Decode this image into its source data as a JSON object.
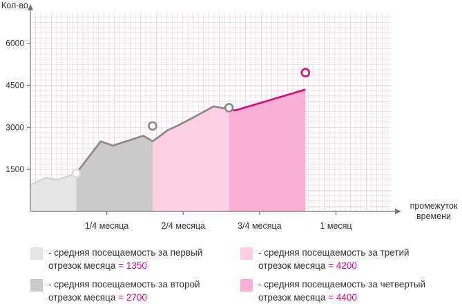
{
  "chart_data": {
    "type": "area",
    "ylabel": "Кол-во",
    "xlabel": "промежуток\nвремени",
    "yticks": [
      1500,
      3000,
      4500,
      6000
    ],
    "ylim": [
      0,
      7000
    ],
    "xlim": [
      0,
      1.2
    ],
    "categories": [
      "1/4 месяца",
      "2/4 месяца",
      "3/4 месяца",
      "1 месяц"
    ],
    "category_x": [
      0.25,
      0.5,
      0.75,
      1.0
    ],
    "grid": true,
    "line": {
      "x": [
        0.0,
        0.05,
        0.09,
        0.15,
        0.23,
        0.27,
        0.37,
        0.4,
        0.45,
        0.48,
        0.55,
        0.6,
        0.67,
        0.9,
        0.95,
        1.0
      ],
      "y": [
        950,
        1200,
        1130,
        1360,
        2500,
        2350,
        2700,
        2500,
        2900,
        3050,
        3450,
        3750,
        3600,
        4350,
        4380,
        4950
      ]
    },
    "markers": [
      {
        "x": 0.15,
        "y": 1360
      },
      {
        "x": 0.4,
        "y": 3050
      },
      {
        "x": 0.65,
        "y": 3700
      },
      {
        "x": 0.9,
        "y": 4950
      }
    ],
    "segments": [
      {
        "from": 0.0,
        "to": 0.15,
        "fill": "#e6e6e6",
        "line": "#d4d4d4",
        "marker": "#dcdcdc"
      },
      {
        "from": 0.15,
        "to": 0.4,
        "fill": "#cbc9c9",
        "line": "#8a8686",
        "marker": "#8a8686"
      },
      {
        "from": 0.4,
        "to": 0.65,
        "fill": "#fccfe5",
        "line": "#8a8686",
        "marker": "#8a8686"
      },
      {
        "from": 0.65,
        "to": 0.9,
        "fill": "#fab0d4",
        "line": "#e6007e",
        "marker": "#e6007e"
      }
    ]
  },
  "legend": [
    {
      "color": "#e6e6e6",
      "line1": "- средняя посещаемость за первый",
      "line2": "отрезок месяца",
      "eq": "=",
      "value": "1350"
    },
    {
      "color": "#fccfe5",
      "line1": "- средняя посещаемость за третий",
      "line2": "отрезок месяца",
      "eq": "=",
      "value": "4200"
    },
    {
      "color": "#cbc9c9",
      "line1": "- средняя посещаемость за второй",
      "line2": "отрезок месяца",
      "eq": "=",
      "value": "2700"
    },
    {
      "color": "#fab0d4",
      "line1": "- средняя посещаемость за четвертый",
      "line2": "отрезок месяца",
      "eq": "=",
      "value": "4400"
    }
  ]
}
